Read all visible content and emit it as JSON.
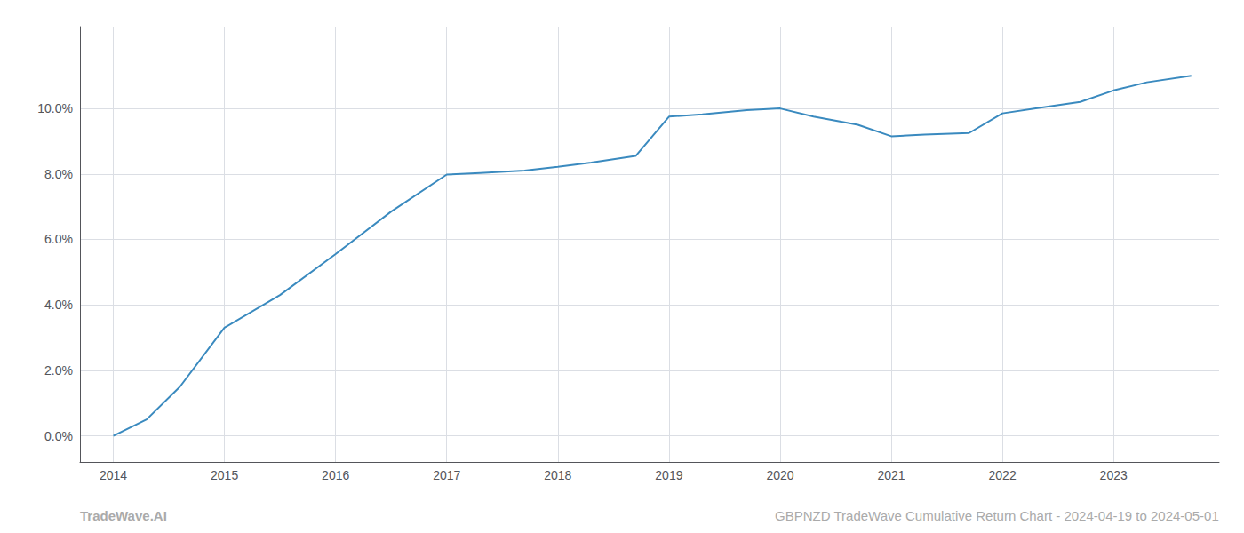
{
  "chart_data": {
    "type": "line",
    "x": [
      2014.0,
      2014.3,
      2014.6,
      2015.0,
      2015.5,
      2016.0,
      2016.5,
      2017.0,
      2017.3,
      2017.7,
      2018.0,
      2018.3,
      2018.7,
      2019.0,
      2019.3,
      2019.7,
      2020.0,
      2020.3,
      2020.7,
      2021.0,
      2021.3,
      2021.7,
      2022.0,
      2022.3,
      2022.7,
      2023.0,
      2023.3,
      2023.7
    ],
    "values": [
      0.0,
      0.5,
      1.5,
      3.3,
      4.3,
      5.55,
      6.85,
      7.98,
      8.03,
      8.1,
      8.22,
      8.35,
      8.55,
      9.75,
      9.82,
      9.95,
      10.0,
      9.75,
      9.5,
      9.15,
      9.2,
      9.25,
      9.85,
      10.0,
      10.2,
      10.55,
      10.8,
      11.0
    ],
    "color": "#3a8abf",
    "xlim": [
      2013.7,
      2023.95
    ],
    "ylim": [
      -0.8,
      12.5
    ],
    "xticks": [
      2014,
      2015,
      2016,
      2017,
      2018,
      2019,
      2020,
      2021,
      2022,
      2023
    ],
    "yticks": [
      {
        "value": 0.0,
        "label": "0.0%"
      },
      {
        "value": 2.0,
        "label": "2.0%"
      },
      {
        "value": 4.0,
        "label": "4.0%"
      },
      {
        "value": 6.0,
        "label": "6.0%"
      },
      {
        "value": 8.0,
        "label": "8.0%"
      },
      {
        "value": 10.0,
        "label": "10.0%"
      }
    ],
    "grid": true,
    "annotations": [
      "TradeWave.AI",
      "GBPNZD TradeWave Cumulative Return Chart - 2024-04-19 to 2024-05-01"
    ]
  }
}
